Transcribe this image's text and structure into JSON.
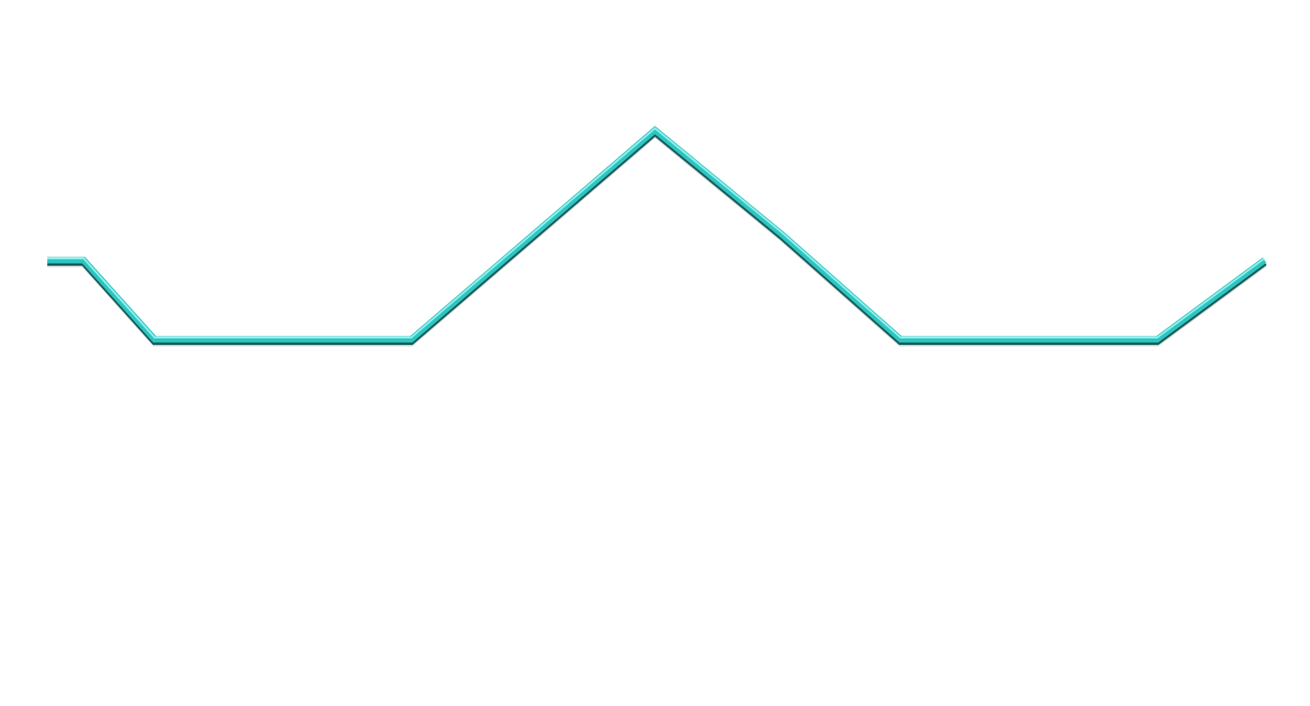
{
  "chart_data": {
    "type": "line",
    "x": [
      0,
      1,
      2,
      3,
      4,
      5,
      6,
      7,
      8,
      9,
      10
    ],
    "series": [
      {
        "values": [
          5,
          5,
          3,
          3,
          3,
          8.3,
          5.6,
          3,
          3,
          3,
          5
        ]
      }
    ],
    "ylim": [
      0,
      11
    ],
    "xlim": [
      0,
      10
    ],
    "grid": false,
    "axes_visible": false,
    "colors": {
      "line_main": "#2fc4c0",
      "line_highlight": "#9ff6f3",
      "line_dark": "#0f5a57",
      "shadow": "#9aa3a2"
    }
  }
}
